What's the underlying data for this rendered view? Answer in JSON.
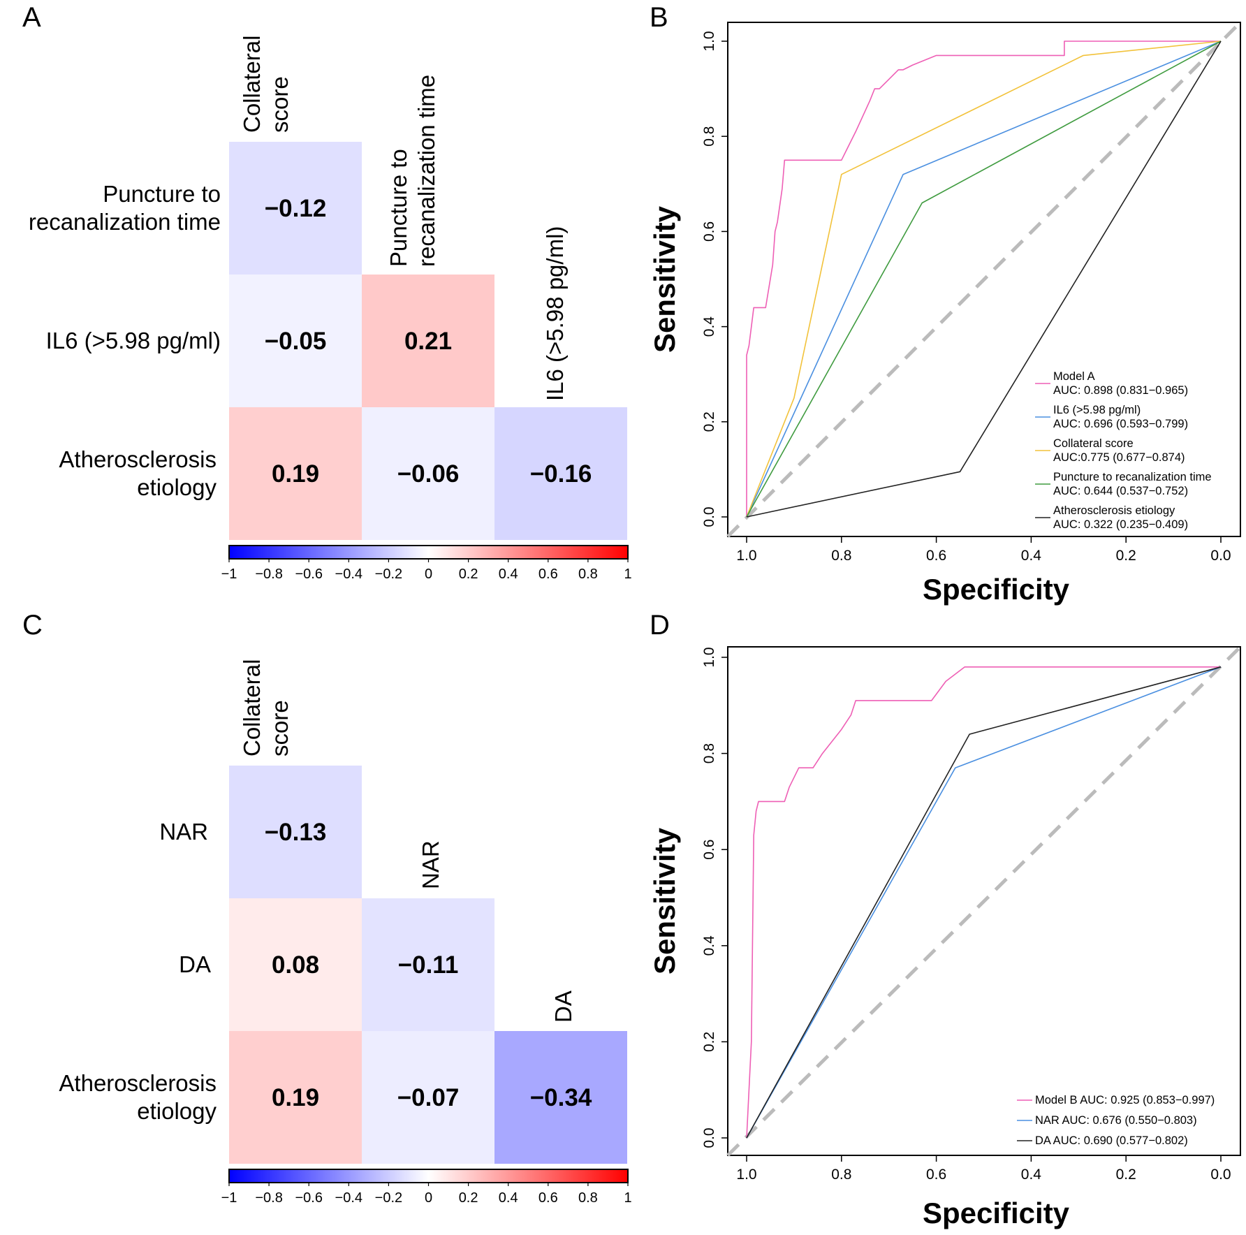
{
  "chart_data": [
    {
      "panel": "A",
      "type": "heatmap",
      "columns": [
        [
          "Collateral",
          "score"
        ],
        [
          "Puncture to",
          "recanalization time"
        ],
        [
          "IL6 (>5.98 pg/ml)"
        ]
      ],
      "rows": [
        [
          "Puncture to",
          "recanalization time"
        ],
        [
          "IL6 (>5.98 pg/ml)"
        ],
        [
          "Atherosclerosis",
          "etiology"
        ]
      ],
      "values": [
        [
          -0.12,
          null,
          null
        ],
        [
          -0.05,
          0.21,
          null
        ],
        [
          0.19,
          -0.06,
          -0.16
        ]
      ],
      "labels": [
        [
          "−0.12",
          null,
          null
        ],
        [
          "−0.05",
          "0.21",
          null
        ],
        [
          "0.19",
          "−0.06",
          "−0.16"
        ]
      ],
      "colorbar": {
        "range": [
          -1,
          1
        ],
        "ticks": [
          "−1",
          "−0.8",
          "−0.6",
          "−0.4",
          "−0.2",
          "0",
          "0.2",
          "0.4",
          "0.6",
          "0.8",
          "1"
        ],
        "colors": {
          "low": "#0000ff",
          "mid": "#ffffff",
          "high": "#ff0000"
        }
      }
    },
    {
      "panel": "B",
      "type": "line",
      "xlabel": "Specificity",
      "ylabel": "Sensitivity",
      "xlim": [
        1.0,
        0.0
      ],
      "ylim": [
        0.0,
        1.0
      ],
      "xticks": [
        "1.0",
        "0.8",
        "0.6",
        "0.4",
        "0.2",
        "0.0"
      ],
      "yticks": [
        "0.0",
        "0.2",
        "0.4",
        "0.6",
        "0.8",
        "1.0"
      ],
      "reference_line": {
        "style": "dashed",
        "color": "#bbbbbb"
      },
      "legend_position": "bottom-right",
      "series": [
        {
          "name": "Model A",
          "auc_text": "AUC: 0.898 (0.831−0.965)",
          "color": "#ee5fb5",
          "x": [
            1.0,
            1.0,
            0.995,
            0.99,
            0.985,
            0.975,
            0.96,
            0.945,
            0.94,
            0.935,
            0.925,
            0.92,
            0.915,
            0.9,
            0.8,
            0.79,
            0.77,
            0.74,
            0.73,
            0.72,
            0.68,
            0.67,
            0.65,
            0.6,
            0.33,
            0.33,
            0.0
          ],
          "y": [
            0.0,
            0.34,
            0.36,
            0.4,
            0.44,
            0.44,
            0.44,
            0.53,
            0.6,
            0.62,
            0.69,
            0.75,
            0.75,
            0.75,
            0.75,
            0.77,
            0.81,
            0.875,
            0.9,
            0.9,
            0.94,
            0.94,
            0.95,
            0.97,
            0.97,
            1.0,
            1.0
          ]
        },
        {
          "name": "IL6 (>5.98 pg/ml)",
          "auc_text": "AUC: 0.696 (0.593−0.799)",
          "color": "#4a8fe0",
          "x": [
            1.0,
            0.67,
            0.0
          ],
          "y": [
            0.0,
            0.72,
            1.0
          ]
        },
        {
          "name": "Collateral score",
          "auc_text": "AUC:0.775 (0.677−0.874)",
          "color": "#f2c23a",
          "x": [
            1.0,
            0.9,
            0.8,
            0.29,
            0.0
          ],
          "y": [
            0.0,
            0.25,
            0.72,
            0.97,
            1.0
          ]
        },
        {
          "name": "Puncture to recanalization time",
          "auc_text": "AUC: 0.644 (0.537−0.752)",
          "color": "#3f9b3f",
          "x": [
            1.0,
            0.63,
            0.0
          ],
          "y": [
            0.0,
            0.66,
            1.0
          ]
        },
        {
          "name": "Atherosclerosis etiology",
          "auc_text": "AUC: 0.322 (0.235−0.409)",
          "color": "#222222",
          "x": [
            1.0,
            0.55,
            0.0
          ],
          "y": [
            0.0,
            0.095,
            1.0
          ]
        }
      ]
    },
    {
      "panel": "C",
      "type": "heatmap",
      "columns": [
        [
          "Collateral",
          "score"
        ],
        [
          "NAR"
        ],
        [
          "DA"
        ]
      ],
      "rows": [
        [
          "NAR"
        ],
        [
          "DA"
        ],
        [
          "Atherosclerosis",
          "etiology"
        ]
      ],
      "values": [
        [
          -0.13,
          null,
          null
        ],
        [
          0.08,
          -0.11,
          null
        ],
        [
          0.19,
          -0.07,
          -0.34
        ]
      ],
      "labels": [
        [
          "−0.13",
          null,
          null
        ],
        [
          "0.08",
          "−0.11",
          null
        ],
        [
          "0.19",
          "−0.07",
          "−0.34"
        ]
      ],
      "colorbar": {
        "range": [
          -1,
          1
        ],
        "ticks": [
          "−1",
          "−0.8",
          "−0.6",
          "−0.4",
          "−0.2",
          "0",
          "0.2",
          "0.4",
          "0.6",
          "0.8",
          "1"
        ],
        "colors": {
          "low": "#0000ff",
          "mid": "#ffffff",
          "high": "#ff0000"
        }
      }
    },
    {
      "panel": "D",
      "type": "line",
      "xlabel": "Specificity",
      "ylabel": "Sensitivity",
      "xlim": [
        1.0,
        0.0
      ],
      "ylim": [
        0.0,
        1.0
      ],
      "xticks": [
        "1.0",
        "0.8",
        "0.6",
        "0.4",
        "0.2",
        "0.0"
      ],
      "yticks": [
        "0.0",
        "0.2",
        "0.4",
        "0.6",
        "0.8",
        "1.0"
      ],
      "reference_line": {
        "style": "dashed",
        "color": "#bbbbbb"
      },
      "legend_position": "bottom-right",
      "series": [
        {
          "name": "Model B AUC: 0.925 (0.853−0.997)",
          "color": "#ee5fb5",
          "x": [
            1.0,
            0.99,
            0.985,
            0.98,
            0.975,
            0.96,
            0.92,
            0.91,
            0.89,
            0.875,
            0.86,
            0.84,
            0.8,
            0.78,
            0.77,
            0.61,
            0.58,
            0.54,
            0.0
          ],
          "y": [
            0.0,
            0.2,
            0.63,
            0.68,
            0.7,
            0.7,
            0.7,
            0.73,
            0.77,
            0.77,
            0.77,
            0.8,
            0.85,
            0.88,
            0.91,
            0.91,
            0.95,
            0.98,
            0.98
          ]
        },
        {
          "name": "NAR AUC: 0.676 (0.550−0.803)",
          "color": "#4a8fe0",
          "x": [
            1.0,
            0.56,
            0.0
          ],
          "y": [
            0.0,
            0.77,
            0.98
          ]
        },
        {
          "name": "DA AUC: 0.690 (0.577−0.802)",
          "color": "#222222",
          "x": [
            1.0,
            0.53,
            0.0
          ],
          "y": [
            0.0,
            0.84,
            0.98
          ]
        }
      ]
    }
  ],
  "panel_letters": {
    "a": "A",
    "b": "B",
    "c": "C",
    "d": "D"
  }
}
